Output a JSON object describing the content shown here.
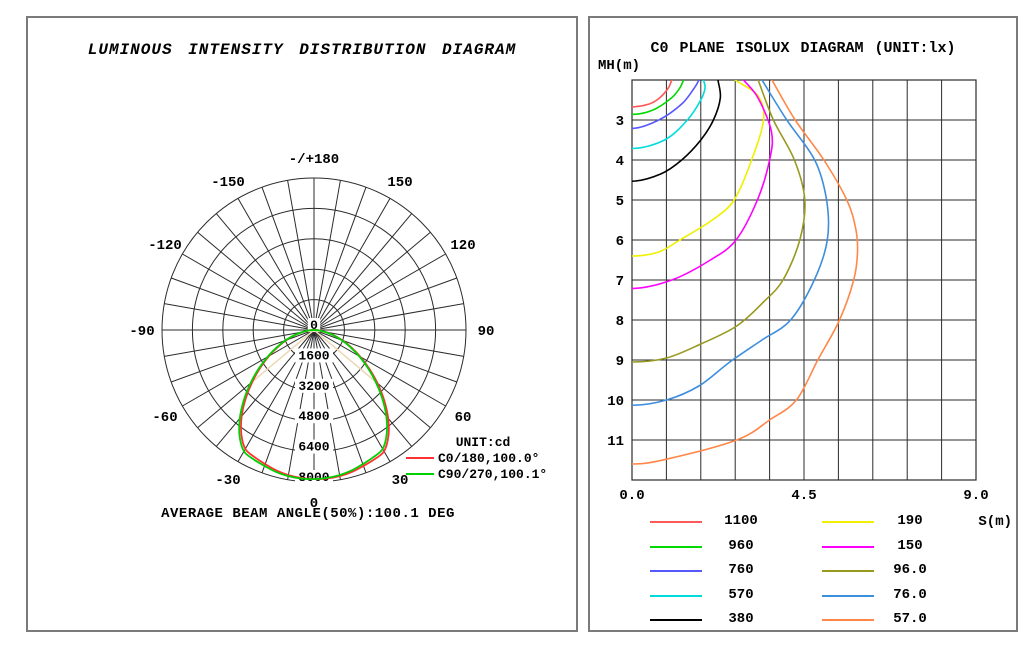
{
  "left_panel": {
    "title": "LUMINOUS INTENSITY DISTRIBUTION DIAGRAM",
    "unit_label": "UNIT:cd",
    "legend": [
      {
        "label": "C0/180,100.0°",
        "color": "#ff3232"
      },
      {
        "label": "C90/270,100.1°",
        "color": "#00cf00"
      }
    ],
    "footer": "AVERAGE BEAM ANGLE(50%):100.1 DEG"
  },
  "right_panel": {
    "title": "C0 PLANE ISOLUX DIAGRAM (UNIT:lx)",
    "y_axis_label": "MH(m)",
    "x_axis_label": "S(m)"
  },
  "chart_data": [
    {
      "type": "line",
      "subtype": "polar-intensity-distribution",
      "title": "LUMINOUS INTENSITY DISTRIBUTION DIAGRAM",
      "unit": "cd",
      "ring_values": [
        0,
        1600,
        3200,
        4800,
        6400,
        8000
      ],
      "max_ring": 8000,
      "angle_grid_step_deg": 10,
      "angle_labels": [
        {
          "angle": 0,
          "label": "0"
        },
        {
          "angle": 30,
          "label": "30"
        },
        {
          "angle": 60,
          "label": "60"
        },
        {
          "angle": 90,
          "label": "90"
        },
        {
          "angle": 120,
          "label": "120"
        },
        {
          "angle": 150,
          "label": "150"
        },
        {
          "angle": 180,
          "label": "-/+180"
        },
        {
          "angle": -150,
          "label": "-150"
        },
        {
          "angle": -120,
          "label": "-120"
        },
        {
          "angle": -90,
          "label": "-90"
        },
        {
          "angle": -60,
          "label": "-60"
        },
        {
          "angle": -30,
          "label": "-30"
        }
      ],
      "average_beam_angle_deg": 100.1,
      "beam_half_angle_deg": 50,
      "beam_marker_color": "#eed9b8",
      "grid_color": "#2b2b2b",
      "profile_angles_deg": [
        0,
        5,
        10,
        15,
        20,
        25,
        30,
        35,
        40,
        45,
        50,
        55,
        60,
        65,
        70,
        75,
        80,
        85,
        90
      ],
      "series": [
        {
          "name": "C0/180,100.0°",
          "color": "#ff3232",
          "asym_sin_coeff": 0.02,
          "intensity_cd": [
            7850,
            7830,
            7780,
            7690,
            7560,
            7450,
            7300,
            6750,
            6000,
            5150,
            4300,
            3500,
            2780,
            2130,
            1560,
            1060,
            620,
            260,
            0
          ]
        },
        {
          "name": "C90/270,100.1°",
          "color": "#00cf00",
          "asym_sin_coeff": -0.02,
          "intensity_cd": [
            7850,
            7830,
            7780,
            7690,
            7560,
            7450,
            7300,
            6750,
            6000,
            5150,
            4300,
            3500,
            2780,
            2130,
            1560,
            1060,
            620,
            260,
            0
          ]
        }
      ]
    },
    {
      "type": "line",
      "subtype": "isolux-contours",
      "title": "C0 PLANE ISOLUX DIAGRAM (UNIT:lx)",
      "unit": "lx",
      "xlabel": "S(m)",
      "ylabel": "MH(m)",
      "x_range": [
        0,
        9
      ],
      "y_range": [
        2,
        12
      ],
      "x_grid_divisions": 10,
      "y_grid_divisions": 10,
      "x_tick_values": [
        0,
        4.5,
        9
      ],
      "x_tick_labels": [
        "0.0",
        "4.5",
        "9.0"
      ],
      "y_tick_values": [
        3,
        4,
        5,
        6,
        7,
        8,
        9,
        10,
        11
      ],
      "grid_color": "#2b2b2b",
      "series": [
        {
          "level": "1100",
          "lux": 1100,
          "color": "#ff5a5a",
          "points_s_mh": [
            [
              0,
              2.67
            ],
            [
              0.45,
              2.6
            ],
            [
              0.72,
              2.45
            ],
            [
              0.95,
              2.2
            ],
            [
              1.04,
              2.0
            ]
          ]
        },
        {
          "level": "960",
          "lux": 960,
          "color": "#00d900",
          "points_s_mh": [
            [
              0,
              2.86
            ],
            [
              0.55,
              2.75
            ],
            [
              1.03,
              2.45
            ],
            [
              1.25,
              2.2
            ],
            [
              1.35,
              2.0
            ]
          ]
        },
        {
          "level": "760",
          "lux": 760,
          "color": "#5858ff",
          "points_s_mh": [
            [
              0,
              3.21
            ],
            [
              0.7,
              3.0
            ],
            [
              1.3,
              2.6
            ],
            [
              1.63,
              2.2
            ],
            [
              1.75,
              2.0
            ]
          ]
        },
        {
          "level": "570",
          "lux": 570,
          "color": "#00dcdc",
          "points_s_mh": [
            [
              0,
              3.71
            ],
            [
              0.85,
              3.5
            ],
            [
              1.45,
              3.0
            ],
            [
              1.8,
              2.5
            ],
            [
              1.91,
              2.2
            ],
            [
              1.87,
              2.0
            ]
          ]
        },
        {
          "level": "380",
          "lux": 380,
          "color": "#000000",
          "points_s_mh": [
            [
              0,
              4.53
            ],
            [
              0.75,
              4.35
            ],
            [
              1.3,
              4.0
            ],
            [
              1.8,
              3.5
            ],
            [
              2.13,
              3.0
            ],
            [
              2.31,
              2.45
            ],
            [
              2.25,
              2.0
            ]
          ]
        },
        {
          "level": "190",
          "lux": 190,
          "color": "#f0f000",
          "points_s_mh": [
            [
              0,
              6.4
            ],
            [
              0.7,
              6.3
            ],
            [
              1.25,
              6.0
            ],
            [
              2.1,
              5.5
            ],
            [
              2.67,
              5.0
            ],
            [
              3.13,
              4.0
            ],
            [
              3.44,
              3.0
            ],
            [
              3.3,
              2.4
            ],
            [
              2.7,
              2.0
            ]
          ]
        },
        {
          "level": "150",
          "lux": 150,
          "color": "#ff00ff",
          "points_s_mh": [
            [
              0,
              7.21
            ],
            [
              1.04,
              7.0
            ],
            [
              2.05,
              6.5
            ],
            [
              2.72,
              6.0
            ],
            [
              3.28,
              5.0
            ],
            [
              3.6,
              4.0
            ],
            [
              3.65,
              3.3
            ],
            [
              3.3,
              2.45
            ],
            [
              2.92,
              2.0
            ]
          ]
        },
        {
          "level": "96.0",
          "lux": 96,
          "color": "#99991f",
          "points_s_mh": [
            [
              0,
              9.05
            ],
            [
              0.9,
              8.95
            ],
            [
              1.8,
              8.6
            ],
            [
              2.74,
              8.15
            ],
            [
              3.44,
              7.55
            ],
            [
              3.95,
              7.0
            ],
            [
              4.39,
              6.0
            ],
            [
              4.52,
              5.0
            ],
            [
              4.25,
              4.0
            ],
            [
              3.7,
              3.0
            ],
            [
              3.3,
              2.0
            ]
          ]
        },
        {
          "level": "76.0",
          "lux": 76,
          "color": "#3e8ede",
          "points_s_mh": [
            [
              0,
              10.13
            ],
            [
              0.9,
              10.0
            ],
            [
              1.75,
              9.65
            ],
            [
              2.56,
              9.05
            ],
            [
              3.4,
              8.5
            ],
            [
              4.15,
              8.0
            ],
            [
              4.77,
              7.0
            ],
            [
              5.11,
              6.0
            ],
            [
              5.09,
              5.0
            ],
            [
              4.78,
              4.0
            ],
            [
              4.05,
              3.0
            ],
            [
              3.4,
              2.0
            ]
          ]
        },
        {
          "level": "57.0",
          "lux": 57,
          "color": "#ff8848",
          "points_s_mh": [
            [
              0,
              11.6
            ],
            [
              0.9,
              11.48
            ],
            [
              2.74,
              11.0
            ],
            [
              3.6,
              10.5
            ],
            [
              4.3,
              10.0
            ],
            [
              4.86,
              9.0
            ],
            [
              5.43,
              8.0
            ],
            [
              5.8,
              7.0
            ],
            [
              5.9,
              6.3
            ],
            [
              5.85,
              5.7
            ],
            [
              5.62,
              5.0
            ],
            [
              5.02,
              4.0
            ],
            [
              4.27,
              3.0
            ],
            [
              3.66,
              2.0
            ]
          ]
        }
      ]
    }
  ]
}
